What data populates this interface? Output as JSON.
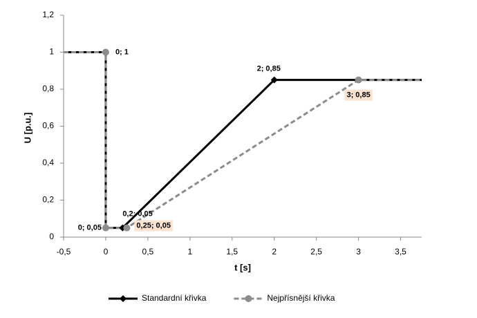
{
  "chart_data": {
    "type": "line",
    "x_label": "t [s]",
    "y_label": "U [p.u.]",
    "xlim": [
      -0.5,
      3.75
    ],
    "ylim": [
      0,
      1.2
    ],
    "xticks": [
      {
        "value": -0.5,
        "label": "-0,5"
      },
      0,
      {
        "value": 0.5,
        "label": "0,5"
      },
      1,
      {
        "value": 1.5,
        "label": "1,5"
      },
      2,
      {
        "value": 2.5,
        "label": "2,5"
      },
      3,
      {
        "value": 3.5,
        "label": "3,5"
      }
    ],
    "yticks": [
      0,
      {
        "value": 0.2,
        "label": "0,2"
      },
      {
        "value": 0.4,
        "label": "0,4"
      },
      {
        "value": 0.6,
        "label": "0,6"
      },
      {
        "value": 0.8,
        "label": "0,8"
      },
      1,
      {
        "value": 1.2,
        "label": "1,2"
      }
    ],
    "grid": false,
    "legend": "bottom",
    "series": [
      {
        "name": "Standardní křivka",
        "color": "#000000",
        "dashed": false,
        "marker": "diamond",
        "x": [
          -0.5,
          0,
          0,
          0.2,
          2,
          3.75
        ],
        "values": [
          1,
          1,
          0.05,
          0.05,
          0.85,
          0.85
        ],
        "value_labels": [
          null,
          null,
          null,
          "0,2; 0,05",
          "2; 0,85",
          null
        ]
      },
      {
        "name": "Nejpřísnější křivka",
        "color": "#8c8c8c",
        "dashed": true,
        "marker": "circle",
        "x": [
          -0.5,
          0,
          0,
          0.25,
          3,
          3.75
        ],
        "values": [
          1,
          1,
          0.05,
          0.05,
          0.85,
          0.85
        ],
        "value_labels": [
          null,
          "0; 1",
          "0; 0,05",
          "0,25; 0,05",
          "3; 0,85",
          null
        ]
      }
    ]
  }
}
